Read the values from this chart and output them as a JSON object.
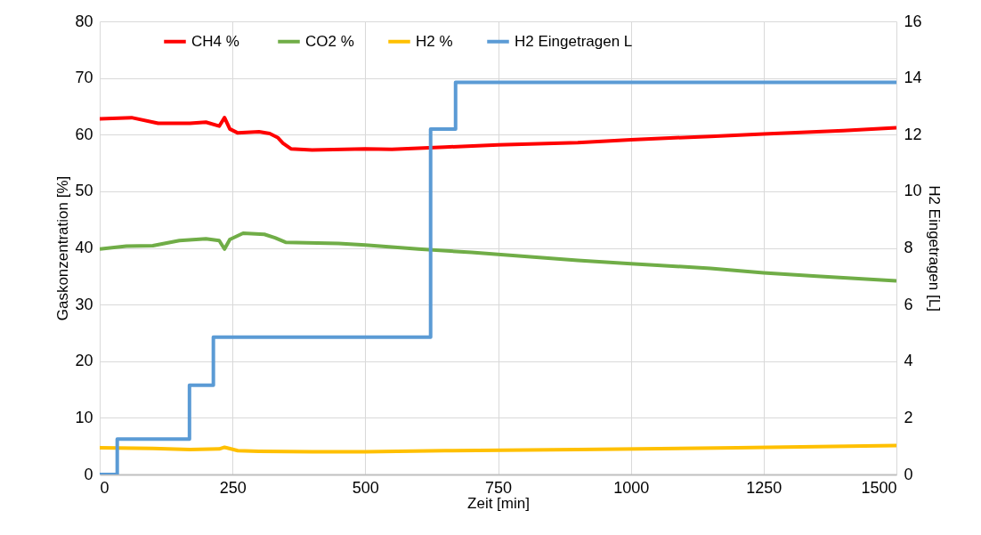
{
  "chart_data": {
    "type": "line",
    "xlabel": "Zeit [min]",
    "ylabel": "Gaskonzentration [%]",
    "y2label": "H2 Eingetragen [L]",
    "xlim": [
      0,
      1500
    ],
    "xticks": [
      0,
      250,
      500,
      750,
      1000,
      1250,
      1500
    ],
    "ylim": [
      0,
      80
    ],
    "yticks": [
      0,
      10,
      20,
      30,
      40,
      50,
      60,
      70,
      80
    ],
    "y2lim": [
      0,
      16
    ],
    "y2ticks": [
      0,
      2,
      4,
      6,
      8,
      10,
      12,
      14,
      16
    ],
    "grid": true,
    "legend": "top",
    "marker": "none",
    "series": [
      {
        "name": "CH4  %",
        "color": "#ff0000",
        "x": [
          0,
          60,
          110,
          170,
          200,
          225,
          235,
          245,
          260,
          300,
          320,
          335,
          345,
          360,
          400,
          500,
          550,
          650,
          750,
          900,
          1000,
          1150,
          1250,
          1400,
          1500
        ],
        "values": [
          62.8,
          63,
          62,
          62,
          62.2,
          61.5,
          63,
          61,
          60.3,
          60.5,
          60.2,
          59.5,
          58.5,
          57.5,
          57.3,
          57.5,
          57.4,
          57.8,
          58.2,
          58.6,
          59.1,
          59.7,
          60.1,
          60.7,
          61.2
        ]
      },
      {
        "name": "CO2 %",
        "color": "#70ad47",
        "x": [
          0,
          50,
          100,
          150,
          200,
          225,
          235,
          245,
          270,
          310,
          330,
          350,
          450,
          500,
          600,
          700,
          800,
          900,
          1000,
          1150,
          1250,
          1350,
          1500
        ],
        "values": [
          39.8,
          40.3,
          40.4,
          41.3,
          41.6,
          41.3,
          39.8,
          41.5,
          42.6,
          42.4,
          41.8,
          41,
          40.8,
          40.5,
          39.8,
          39.2,
          38.5,
          37.8,
          37.2,
          36.4,
          35.6,
          35,
          34.2
        ]
      },
      {
        "name": "H2 %",
        "color": "#ffc000",
        "x": [
          0,
          100,
          170,
          225,
          235,
          260,
          300,
          400,
          500,
          650,
          900,
          1200,
          1500
        ],
        "values": [
          4.7,
          4.6,
          4.4,
          4.5,
          4.8,
          4.2,
          4.1,
          4,
          4,
          4.2,
          4.4,
          4.7,
          5.1
        ]
      },
      {
        "name": "H2 Eingetragen L",
        "color": "#5b9bd5",
        "type": "step",
        "axis": "y2",
        "x": [
          0,
          33,
          169,
          214,
          623,
          670,
          1500
        ],
        "values": [
          0,
          1.25,
          3.15,
          4.85,
          12.2,
          13.85,
          13.85
        ]
      }
    ]
  }
}
